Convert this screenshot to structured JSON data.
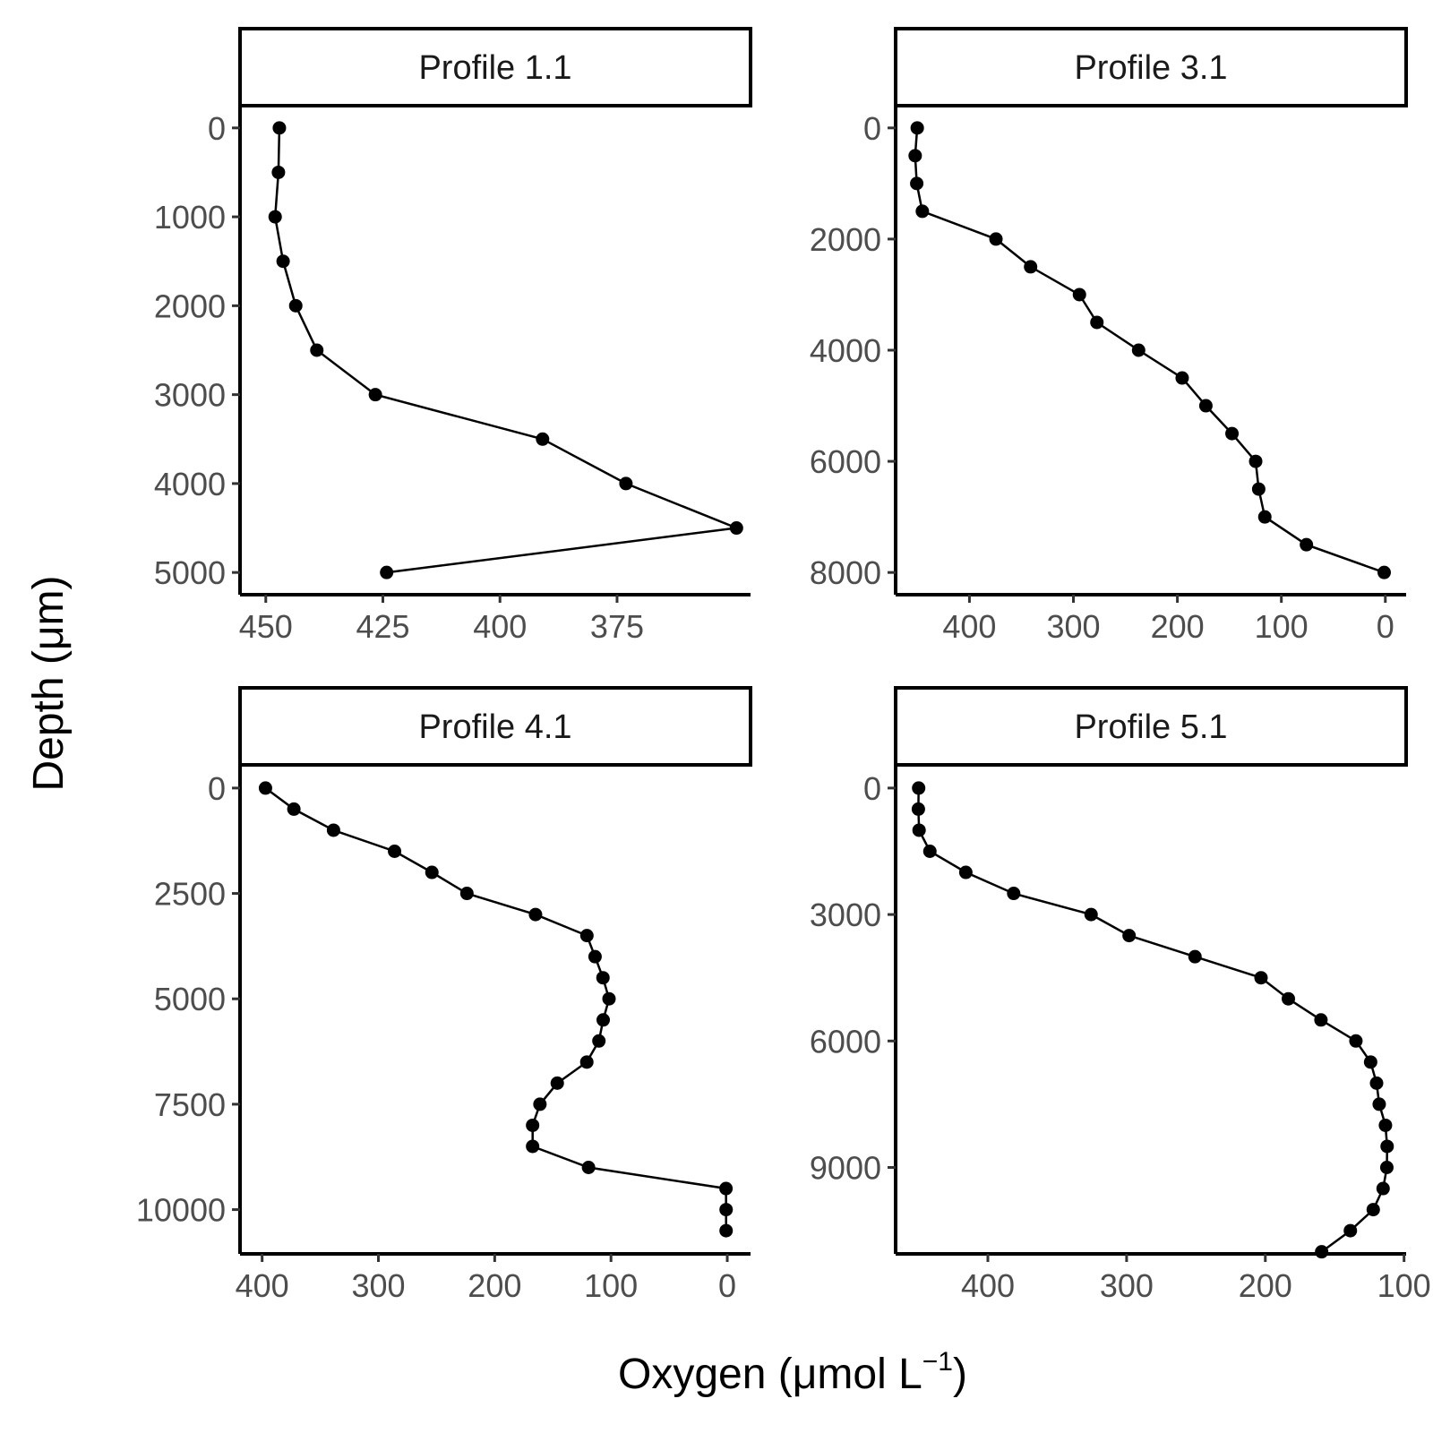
{
  "figure": {
    "ylabel": "Depth (μm)",
    "xlabel_main": "Oxygen (μmol L",
    "xlabel_sup": "−1",
    "xlabel_tail": ")",
    "line_color": "#000000",
    "strip_fill": "#ffffff"
  },
  "chart_data": [
    {
      "type": "line",
      "title": "Profile 1.1",
      "x_reversed": true,
      "y_reversed": true,
      "xlim": [
        455.5,
        346.5
      ],
      "ylim": [
        -250,
        5250
      ],
      "xticks": [
        450,
        425,
        400,
        375
      ],
      "yticks": [
        0,
        1000,
        2000,
        3000,
        4000,
        5000
      ],
      "series": [
        {
          "x": [
            447.1,
            447.3,
            448.0,
            446.3,
            443.6,
            439.1,
            426.6,
            390.9,
            373.1,
            349.5,
            424.2
          ],
          "y": [
            0,
            500,
            1000,
            1500,
            2000,
            2500,
            3000,
            3500,
            4000,
            4500,
            5000
          ]
        }
      ]
    },
    {
      "type": "line",
      "title": "Profile 3.1",
      "x_reversed": true,
      "y_reversed": true,
      "xlim": [
        471,
        -20
      ],
      "ylim": [
        -400,
        8400
      ],
      "xticks": [
        400,
        300,
        200,
        100,
        0
      ],
      "yticks": [
        0,
        2000,
        4000,
        6000,
        8000
      ],
      "series": [
        {
          "x": [
            450.2,
            452.2,
            450.7,
            445.3,
            374.5,
            341.2,
            294.2,
            277.4,
            237.3,
            195.4,
            172.6,
            147.5,
            124.7,
            121.8,
            115.9,
            75.9,
            1.1
          ],
          "y": [
            0,
            500,
            1000,
            1500,
            2000,
            2500,
            3000,
            3500,
            4000,
            4500,
            5000,
            5500,
            6000,
            6500,
            7000,
            7500,
            8000
          ]
        }
      ]
    },
    {
      "type": "line",
      "title": "Profile 4.1",
      "x_reversed": true,
      "y_reversed": true,
      "xlim": [
        419,
        -20
      ],
      "ylim": [
        -550,
        11050
      ],
      "xticks": [
        400,
        300,
        200,
        100,
        0
      ],
      "yticks": [
        0,
        2500,
        5000,
        7500,
        10000
      ],
      "series": [
        {
          "x": [
            397.1,
            372.7,
            338.6,
            286.1,
            254.0,
            223.9,
            164.9,
            120.7,
            113.7,
            106.9,
            101.7,
            106.7,
            110.4,
            120.8,
            146.2,
            161.1,
            167.4,
            167.4,
            119.3,
            1.1,
            1.0,
            1.0
          ],
          "y": [
            0,
            500,
            1000,
            1500,
            2000,
            2500,
            3000,
            3500,
            4000,
            4500,
            5000,
            5500,
            6000,
            6500,
            7000,
            7500,
            8000,
            8500,
            9000,
            9500,
            10000,
            10500
          ]
        }
      ]
    },
    {
      "type": "line",
      "title": "Profile 5.1",
      "x_reversed": true,
      "y_reversed": true,
      "xlim": [
        466.5,
        98.5
      ],
      "ylim": [
        -550,
        11050
      ],
      "xticks": [
        400,
        300,
        200,
        100
      ],
      "yticks": [
        0,
        3000,
        6000,
        9000
      ],
      "series": [
        {
          "x": [
            449.9,
            450.1,
            449.6,
            441.8,
            415.9,
            381.4,
            325.6,
            298.2,
            250.7,
            203.1,
            183.4,
            159.9,
            134.7,
            124.1,
            119.8,
            117.9,
            113.4,
            112.2,
            112.4,
            115.1,
            122.2,
            138.7,
            159.4
          ],
          "y": [
            0,
            500,
            1000,
            1500,
            2000,
            2500,
            3000,
            3500,
            4000,
            4500,
            5000,
            5500,
            6000,
            6500,
            7000,
            7500,
            8000,
            8500,
            9000,
            9500,
            10000,
            10500,
            11000
          ]
        }
      ]
    }
  ]
}
